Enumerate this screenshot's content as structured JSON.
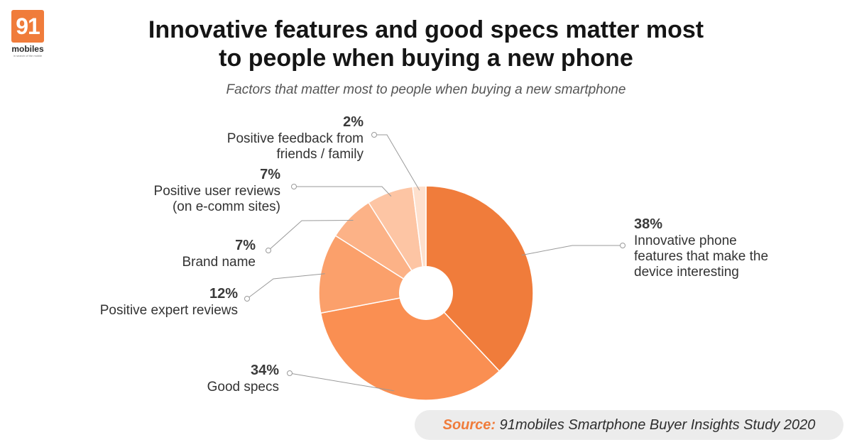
{
  "logo": {
    "number": "91",
    "word": "mobiles",
    "tagline": "in search of the mobile"
  },
  "header": {
    "title_line1": "Innovative features and good specs matter most",
    "title_line2": "to people when buying a new phone",
    "subtitle": "Factors that matter most to people when buying a new smartphone"
  },
  "chart_data": {
    "type": "pie",
    "style": "donut",
    "unit": "%",
    "series": [
      {
        "name": "Innovative phone features that make the device interesting",
        "lines": [
          "Innovative phone",
          "features that make the",
          "device interesting"
        ],
        "value": 38,
        "label": "38%",
        "color": "#f07c3b"
      },
      {
        "name": "Good specs",
        "lines": [
          "Good specs"
        ],
        "value": 34,
        "label": "34%",
        "color": "#fa8f52"
      },
      {
        "name": "Positive expert reviews",
        "lines": [
          "Positive expert reviews"
        ],
        "value": 12,
        "label": "12%",
        "color": "#fba06b"
      },
      {
        "name": "Brand name",
        "lines": [
          "Brand name"
        ],
        "value": 7,
        "label": "7%",
        "color": "#fcb287"
      },
      {
        "name": "Positive user reviews (on e-comm sites)",
        "lines": [
          "Positive user reviews",
          "(on e-comm sites)"
        ],
        "value": 7,
        "label": "7%",
        "color": "#fdc5a4"
      },
      {
        "name": "Positive feedback from friends / family",
        "lines": [
          "Positive feedback from",
          "friends / family"
        ],
        "value": 2,
        "label": "2%",
        "color": "#fee0cd"
      }
    ]
  },
  "source": {
    "prefix": "Source:",
    "text": "91mobiles Smartphone Buyer Insights Study 2020"
  }
}
